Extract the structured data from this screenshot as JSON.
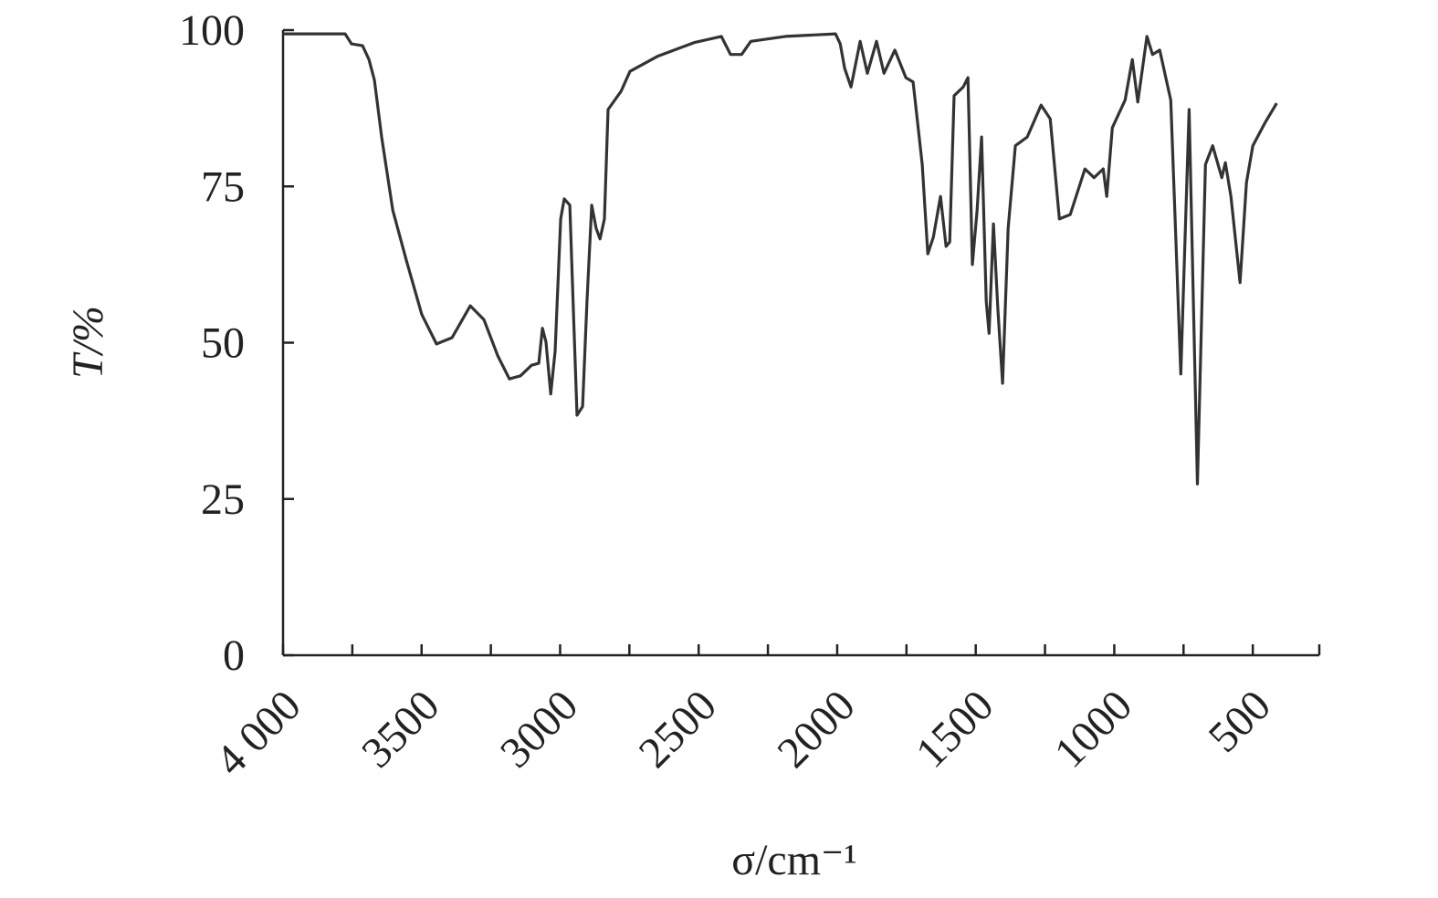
{
  "chart_data": {
    "type": "line",
    "x_label": "σ/cm⁻¹",
    "y_label": "T/%",
    "xlim": [
      4000,
      260
    ],
    "ylim": [
      0,
      100
    ],
    "xticks": [
      {
        "value": 4000,
        "label": "4 000"
      },
      3500,
      3000,
      2500,
      2000,
      1500,
      1000,
      500
    ],
    "xminorticks": [
      3750,
      3250,
      2750,
      2250,
      1750,
      1250,
      750
    ],
    "yticks": [
      0,
      25,
      50,
      75,
      100
    ],
    "series": [
      {
        "color": "#333333",
        "x": [
          4000,
          3776,
          3753,
          3713,
          3690,
          3670,
          3644,
          3604,
          3555,
          3499,
          3446,
          3390,
          3324,
          3275,
          3225,
          3183,
          3143,
          3103,
          3077,
          3064,
          3051,
          3034,
          3018,
          2998,
          2985,
          2965,
          2952,
          2939,
          2919,
          2903,
          2886,
          2870,
          2856,
          2840,
          2827,
          2780,
          2748,
          2649,
          2517,
          2418,
          2385,
          2345,
          2312,
          2187,
          2006,
          1989,
          1973,
          1950,
          1917,
          1891,
          1858,
          1831,
          1792,
          1752,
          1726,
          1693,
          1673,
          1653,
          1627,
          1607,
          1594,
          1578,
          1545,
          1528,
          1512,
          1495,
          1479,
          1462,
          1452,
          1436,
          1420,
          1403,
          1383,
          1357,
          1314,
          1264,
          1231,
          1198,
          1159,
          1106,
          1073,
          1040,
          1027,
          1007,
          961,
          935,
          915,
          882,
          862,
          836,
          796,
          760,
          730,
          700,
          671,
          645,
          612,
          599,
          579,
          546,
          523,
          500,
          457,
          414
        ],
        "values": [
          99.4,
          99.4,
          97.8,
          97.5,
          95.3,
          92,
          82.9,
          71.2,
          63.2,
          54.5,
          49.8,
          50.8,
          55.9,
          53.7,
          47.9,
          44.2,
          44.7,
          46.4,
          46.7,
          52.3,
          50.1,
          41.8,
          48.6,
          69.8,
          73,
          72,
          55.2,
          38.4,
          39.8,
          56.6,
          72,
          68.3,
          66.6,
          69.8,
          87.3,
          90.2,
          93.4,
          95.8,
          98,
          99,
          96.1,
          96.1,
          98.2,
          99,
          99.4,
          97.8,
          93.9,
          90.9,
          98.2,
          93.1,
          98.2,
          93.1,
          96.8,
          92.4,
          91.7,
          78.5,
          64.2,
          66.9,
          73.4,
          65.4,
          66.1,
          89.5,
          90.9,
          92.4,
          62.5,
          71.2,
          82.9,
          56.6,
          51.5,
          69,
          55.2,
          43.5,
          68.3,
          81.5,
          82.9,
          88,
          85.8,
          69.8,
          70.5,
          77.8,
          76.4,
          77.8,
          73.4,
          84.4,
          88.8,
          95.3,
          88.5,
          99,
          96.1,
          96.8,
          88.8,
          45,
          87.3,
          27.4,
          78.5,
          81.5,
          76.4,
          78.8,
          73.4,
          59.6,
          75.6,
          81.5,
          85.1,
          88.3
        ]
      }
    ]
  }
}
